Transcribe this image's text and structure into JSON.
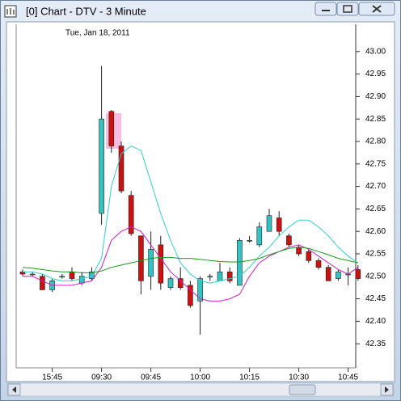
{
  "window": {
    "title": "[0]  Chart - DTV - 3 Minute"
  },
  "chart_data": {
    "type": "candlestick",
    "subtitle": "Tue, Jan 18, 2011",
    "categories": [
      null,
      null,
      null,
      "15:45",
      null,
      null,
      null,
      null,
      "09:30",
      null,
      null,
      null,
      null,
      "09:45",
      null,
      null,
      null,
      null,
      "10:00",
      null,
      null,
      null,
      null,
      "10:15",
      null,
      null,
      null,
      null,
      "10:30",
      null,
      null,
      null,
      null,
      "10:45",
      null
    ],
    "open": [
      42.51,
      42.505,
      42.5,
      42.47,
      42.5,
      42.51,
      42.485,
      42.495,
      42.64,
      42.867,
      42.79,
      42.68,
      42.59,
      42.5,
      42.57,
      42.475,
      42.495,
      42.48,
      42.445,
      42.5,
      42.49,
      42.51,
      42.48,
      42.58,
      42.57,
      42.6,
      42.63,
      42.59,
      42.565,
      42.555,
      42.535,
      42.52,
      42.495,
      42.505,
      42.515
    ],
    "high": [
      42.515,
      42.51,
      42.505,
      42.495,
      42.505,
      42.52,
      42.51,
      42.52,
      42.968,
      42.87,
      42.8,
      42.69,
      42.59,
      42.6,
      42.59,
      42.5,
      42.52,
      42.49,
      42.5,
      42.505,
      42.53,
      42.52,
      42.585,
      42.59,
      42.62,
      42.65,
      42.645,
      42.595,
      42.57,
      42.56,
      42.54,
      42.525,
      42.515,
      42.52,
      42.525
    ],
    "low": [
      42.5,
      42.5,
      42.47,
      42.465,
      42.495,
      42.49,
      42.48,
      42.49,
      42.615,
      42.775,
      42.685,
      42.59,
      42.46,
      42.47,
      42.47,
      42.47,
      42.47,
      42.43,
      42.37,
      42.49,
      42.49,
      42.485,
      42.48,
      42.575,
      42.565,
      42.6,
      42.59,
      42.565,
      42.545,
      42.53,
      42.515,
      42.49,
      42.49,
      42.48,
      42.49
    ],
    "close": [
      42.505,
      42.505,
      42.47,
      42.49,
      42.5,
      42.495,
      42.5,
      42.51,
      42.85,
      42.79,
      42.69,
      42.595,
      42.49,
      42.56,
      42.485,
      42.495,
      42.475,
      42.435,
      42.495,
      42.5,
      42.51,
      42.49,
      42.58,
      42.58,
      42.61,
      42.635,
      42.6,
      42.57,
      42.55,
      42.535,
      42.52,
      42.49,
      42.51,
      42.505,
      42.495
    ],
    "up_color": "#33c3c3",
    "down_color": "#cc1111",
    "series": [
      {
        "color": "#2fd0d0",
        "values": [
          42.51,
          42.51,
          42.505,
          42.495,
          42.49,
          42.49,
          42.495,
          42.5,
          42.54,
          42.7,
          42.773,
          42.79,
          42.78,
          42.71,
          42.64,
          42.58,
          42.53,
          42.505,
          42.49,
          42.485,
          42.49,
          42.495,
          42.5,
          42.52,
          42.545,
          42.565,
          42.59,
          42.61,
          42.625,
          42.625,
          42.61,
          42.59,
          42.565,
          42.545,
          42.53
        ]
      },
      {
        "color": "#d020c8",
        "values": [
          42.5,
          42.5,
          42.49,
          42.48,
          42.48,
          42.48,
          42.485,
          42.49,
          42.52,
          42.58,
          42.6,
          42.61,
          42.6,
          42.57,
          42.54,
          42.51,
          42.49,
          42.47,
          42.45,
          42.445,
          42.445,
          42.45,
          42.46,
          42.5,
          42.53,
          42.545,
          42.555,
          42.565,
          42.57,
          42.56,
          42.545,
          42.53,
          42.515,
          42.505,
          42.52
        ]
      },
      {
        "color": "#1a9a1a",
        "values": [
          42.52,
          42.518,
          42.515,
          42.512,
          42.51,
          42.51,
          42.508,
          42.508,
          42.512,
          42.52,
          42.525,
          42.53,
          42.535,
          42.54,
          42.542,
          42.542,
          42.54,
          42.54,
          42.538,
          42.535,
          42.533,
          42.532,
          42.532,
          42.535,
          42.54,
          42.548,
          42.555,
          42.562,
          42.565,
          42.562,
          42.555,
          42.548,
          42.54,
          42.535,
          42.53
        ]
      }
    ],
    "ylim": [
      42.3,
      43.05
    ],
    "yticks": [
      {
        "value": 43.0,
        "label": "43.00"
      },
      42.95,
      {
        "value": 42.9,
        "label": "42.90"
      },
      42.85,
      {
        "value": 42.8,
        "label": "42.80"
      },
      42.75,
      {
        "value": 42.7,
        "label": "42.70"
      },
      42.65,
      {
        "value": 42.6,
        "label": "42.60"
      },
      42.55,
      {
        "value": 42.5,
        "label": "42.50"
      },
      42.45,
      {
        "value": 42.4,
        "label": "42.40"
      },
      42.35
    ]
  }
}
